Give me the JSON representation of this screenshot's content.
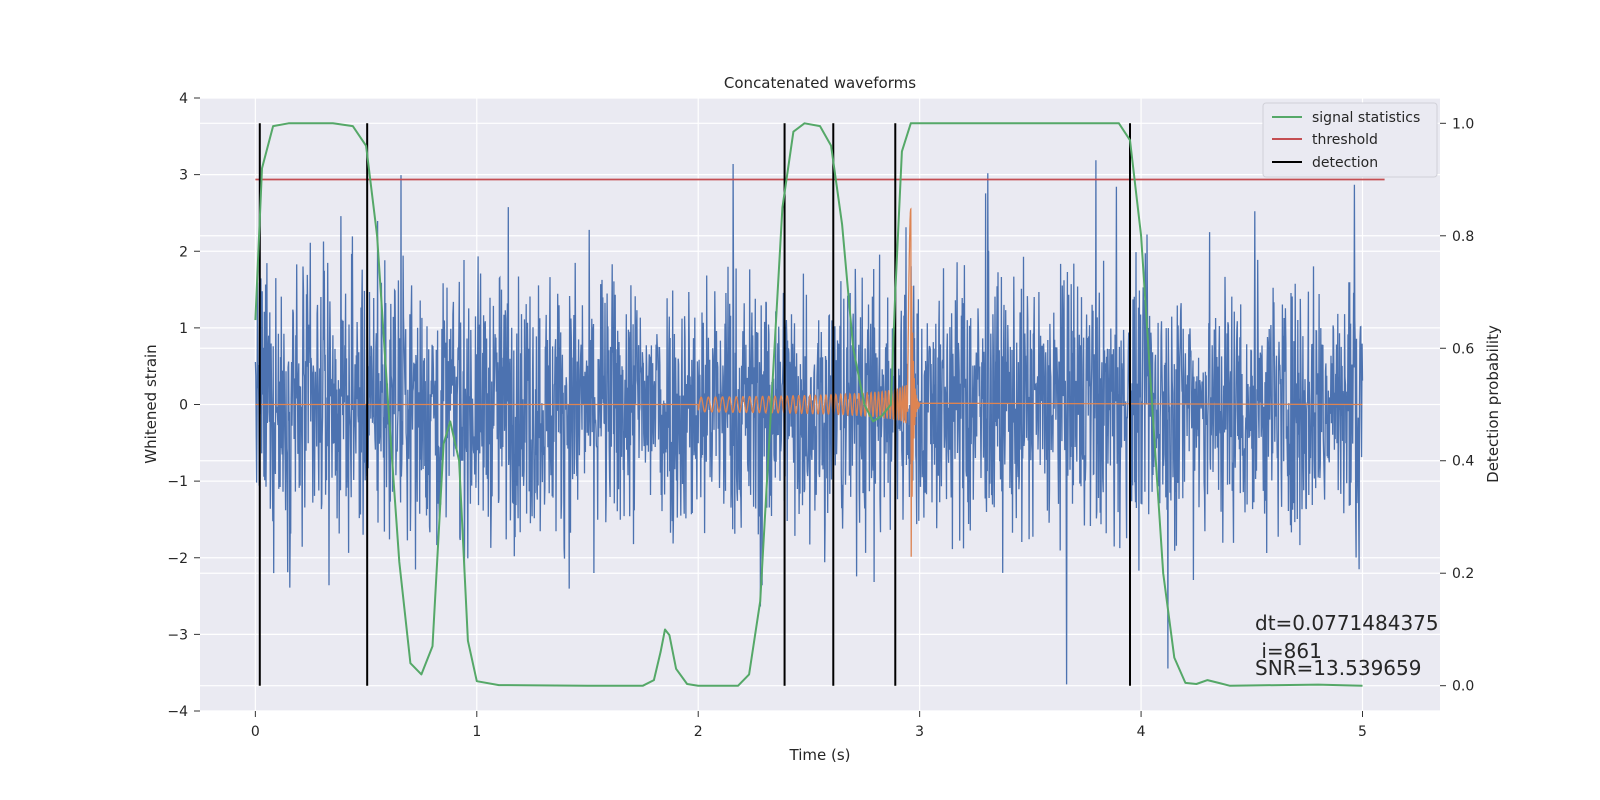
{
  "chart_data": {
    "type": "line",
    "title": "Concatenated waveforms",
    "xlabel": "Time (s)",
    "ylabel_left": "Whitened strain",
    "ylabel_right": "Detection probability",
    "xlim": [
      -0.25,
      5.35
    ],
    "ylim_left": [
      -4.0,
      4.0
    ],
    "ylim_right": [
      -0.045,
      1.045
    ],
    "x_ticks": [
      0,
      1,
      2,
      3,
      4,
      5
    ],
    "y_ticks_left": [
      -4,
      -3,
      -2,
      -1,
      0,
      1,
      2,
      3,
      4
    ],
    "y_ticks_right": [
      "0.0",
      "0.2",
      "0.4",
      "0.6",
      "0.8",
      "1.0"
    ],
    "grid": true,
    "legend_position": "top-right",
    "series": [
      {
        "name": "signal statistics",
        "color": "#55a868",
        "axis": "right",
        "points": [
          [
            0.0,
            0.65
          ],
          [
            0.03,
            0.92
          ],
          [
            0.08,
            0.995
          ],
          [
            0.15,
            1.0
          ],
          [
            0.35,
            1.0
          ],
          [
            0.44,
            0.995
          ],
          [
            0.5,
            0.96
          ],
          [
            0.55,
            0.8
          ],
          [
            0.6,
            0.5
          ],
          [
            0.65,
            0.22
          ],
          [
            0.7,
            0.04
          ],
          [
            0.75,
            0.02
          ],
          [
            0.8,
            0.07
          ],
          [
            0.85,
            0.43
          ],
          [
            0.88,
            0.47
          ],
          [
            0.92,
            0.4
          ],
          [
            0.96,
            0.08
          ],
          [
            1.0,
            0.008
          ],
          [
            1.1,
            0.001
          ],
          [
            1.5,
            0.0
          ],
          [
            1.75,
            0.0
          ],
          [
            1.8,
            0.01
          ],
          [
            1.83,
            0.06
          ],
          [
            1.85,
            0.1
          ],
          [
            1.87,
            0.09
          ],
          [
            1.9,
            0.03
          ],
          [
            1.95,
            0.003
          ],
          [
            2.0,
            0.0
          ],
          [
            2.18,
            0.0
          ],
          [
            2.23,
            0.02
          ],
          [
            2.28,
            0.15
          ],
          [
            2.33,
            0.5
          ],
          [
            2.38,
            0.85
          ],
          [
            2.43,
            0.985
          ],
          [
            2.48,
            1.0
          ],
          [
            2.55,
            0.995
          ],
          [
            2.6,
            0.96
          ],
          [
            2.65,
            0.82
          ],
          [
            2.7,
            0.6
          ],
          [
            2.75,
            0.5
          ],
          [
            2.79,
            0.47
          ],
          [
            2.83,
            0.48
          ],
          [
            2.87,
            0.5
          ],
          [
            2.89,
            0.7
          ],
          [
            2.92,
            0.95
          ],
          [
            2.96,
            1.0
          ],
          [
            3.2,
            1.0
          ],
          [
            3.9,
            1.0
          ],
          [
            3.95,
            0.97
          ],
          [
            4.0,
            0.8
          ],
          [
            4.05,
            0.5
          ],
          [
            4.1,
            0.2
          ],
          [
            4.15,
            0.05
          ],
          [
            4.2,
            0.005
          ],
          [
            4.25,
            0.003
          ],
          [
            4.3,
            0.01
          ],
          [
            4.35,
            0.005
          ],
          [
            4.4,
            0.0
          ],
          [
            4.8,
            0.002
          ],
          [
            5.0,
            0.0
          ]
        ]
      },
      {
        "name": "threshold",
        "color": "#c44e52",
        "axis": "right",
        "points": [
          [
            0.0,
            0.9
          ],
          [
            5.1,
            0.9
          ]
        ]
      },
      {
        "name": "detection",
        "color": "#000000",
        "axis": "right",
        "x_values": [
          0.02,
          0.505,
          2.39,
          2.61,
          2.89,
          3.95
        ],
        "y_range": [
          0.0,
          1.0
        ]
      },
      {
        "color": "#4c72b0",
        "axis": "left",
        "description": "whitened noise strain",
        "x_range": [
          0.0,
          5.0
        ],
        "y_envelope": [
          -3.7,
          3.65
        ]
      },
      {
        "color": "#dd8452",
        "axis": "left",
        "description": "injected chirp",
        "x_range": [
          0.0,
          5.0
        ],
        "chirp_start": 2.0,
        "chirp_peak_time": 2.96,
        "chirp_peak_value": 2.55
      }
    ],
    "annotations": [
      "dt=0.0771484375",
      " i=861",
      "SNR=13.539659"
    ]
  }
}
